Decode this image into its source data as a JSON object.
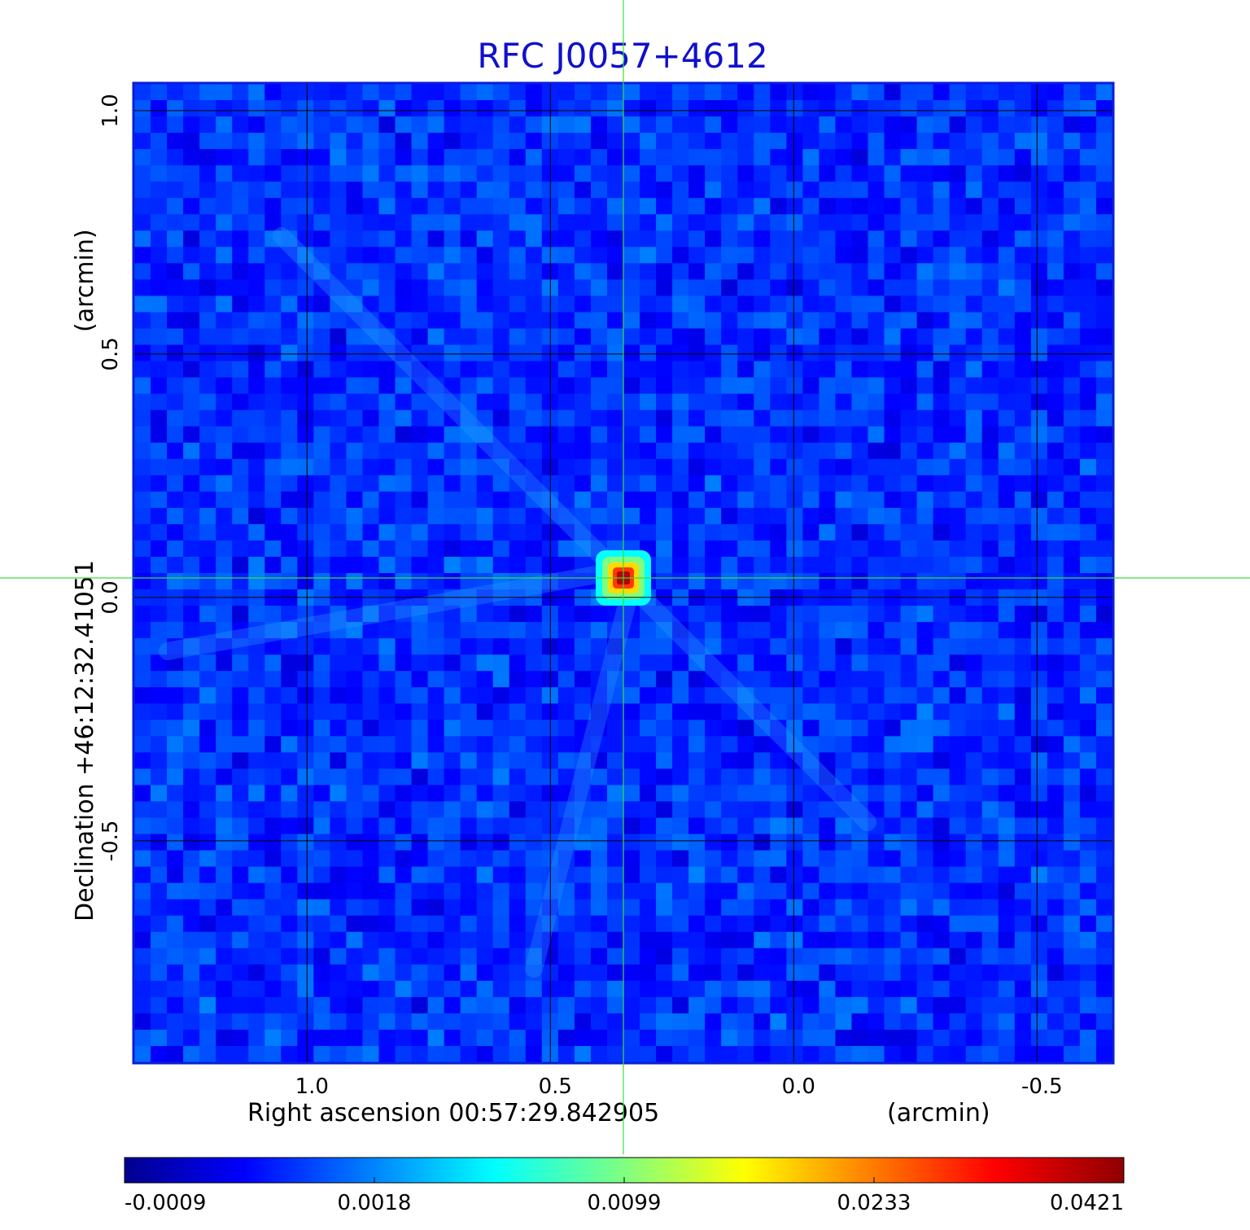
{
  "chart_data": {
    "type": "heatmap",
    "title": "RFC J0057+4612",
    "xlabel": "Right ascension  00:57:29.842905",
    "xunit": "(arcmin)",
    "ylabel": "Declination  +46:12:32.41051",
    "yunit": "(arcmin)",
    "x_ticks": [
      {
        "label": "1.0",
        "value": 1.0
      },
      {
        "label": "0.5",
        "value": 0.5
      },
      {
        "label": "0.0",
        "value": 0.0
      },
      {
        "label": "-0.5",
        "value": -0.5
      }
    ],
    "y_ticks": [
      {
        "label": "1.0",
        "value": 1.0
      },
      {
        "label": "0.5",
        "value": 0.5
      },
      {
        "label": "0.0",
        "value": 0.0
      },
      {
        "label": "-0.5",
        "value": -0.5
      }
    ],
    "xlim": [
      1.355,
      -0.655
    ],
    "ylim": [
      -0.955,
      1.055
    ],
    "x_reversed": true,
    "grid": true,
    "crosshair": {
      "x": 0.35,
      "y": 0.04
    },
    "source": {
      "x": 0.35,
      "y": 0.04,
      "peak": 0.0421
    },
    "colorbar": {
      "ticks": [
        "-0.0009",
        "0.0018",
        "0.0099",
        "0.0233",
        "0.0421"
      ],
      "colormap": "jet"
    }
  },
  "colors": {
    "title": "#1010cc",
    "frame": "#0a1fd6",
    "grid": "#000000",
    "crosshair": "#3cdc3c",
    "background_field": "#1a46e6"
  }
}
